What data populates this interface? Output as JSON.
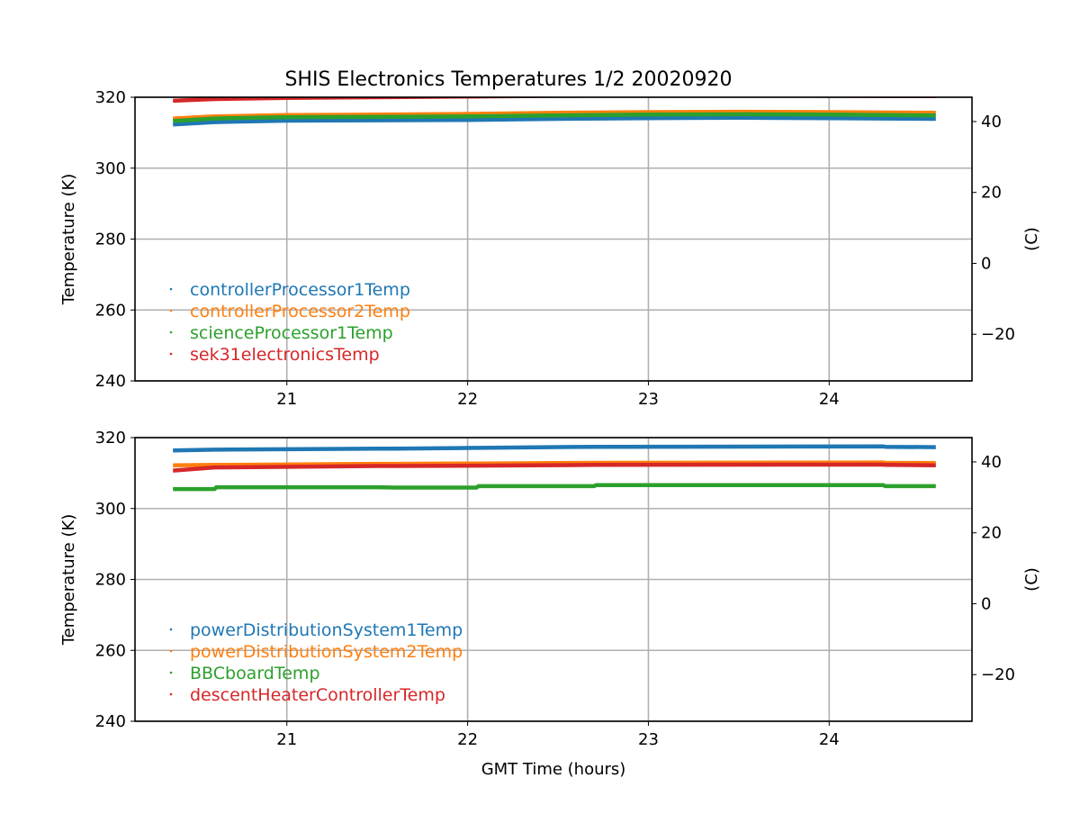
{
  "chart_data": [
    {
      "type": "line",
      "title": "SHIS Electronics Temperatures 1/2 20020920",
      "xlabel": "",
      "ylabel": "Temperature (K)",
      "y2label": "(C)",
      "xlim": [
        20.16,
        24.79
      ],
      "ylim": [
        240,
        320
      ],
      "xticks": [
        "21",
        "22",
        "23",
        "24"
      ],
      "xtick_values": [
        21,
        22,
        23,
        24
      ],
      "yticks": [
        "240",
        "260",
        "280",
        "300",
        "320"
      ],
      "ytick_values": [
        240,
        260,
        280,
        300,
        320
      ],
      "y2ticks": [
        "−20",
        "0",
        "20",
        "40"
      ],
      "y2tick_values": [
        -20,
        0,
        20,
        40
      ],
      "grid": true,
      "legend_position": "lower-left",
      "x": [
        20.37,
        20.6,
        21,
        21.5,
        22,
        22.5,
        23,
        23.5,
        24,
        24.59
      ],
      "series": [
        {
          "name": "controllerProcessor1Temp",
          "color": "#1f77b4",
          "values": [
            312.3,
            313.0,
            313.4,
            313.5,
            313.6,
            313.9,
            314.1,
            314.2,
            314.1,
            313.9
          ]
        },
        {
          "name": "controllerProcessor2Temp",
          "color": "#ff7f0e",
          "values": [
            314.0,
            314.6,
            315.0,
            315.1,
            315.3,
            315.6,
            315.8,
            315.9,
            315.8,
            315.6
          ]
        },
        {
          "name": "scienceProcessor1Temp",
          "color": "#2ca02c",
          "values": [
            313.3,
            314.0,
            314.4,
            314.5,
            314.6,
            314.9,
            315.1,
            315.2,
            315.1,
            314.9
          ]
        },
        {
          "name": "sek31electronicsTemp",
          "color": "#d62728",
          "values": [
            319.0,
            319.5,
            319.8,
            320.0,
            320.2,
            320.4,
            320.5,
            320.5,
            320.4,
            320.3
          ]
        }
      ]
    },
    {
      "type": "line",
      "title": "",
      "xlabel": "GMT Time (hours)",
      "ylabel": "Temperature (K)",
      "y2label": "(C)",
      "xlim": [
        20.16,
        24.79
      ],
      "ylim": [
        240,
        320
      ],
      "xticks": [
        "21",
        "22",
        "23",
        "24"
      ],
      "xtick_values": [
        21,
        22,
        23,
        24
      ],
      "yticks": [
        "240",
        "260",
        "280",
        "300",
        "320"
      ],
      "ytick_values": [
        240,
        260,
        280,
        300,
        320
      ],
      "y2ticks": [
        "−20",
        "0",
        "20",
        "40"
      ],
      "y2tick_values": [
        -20,
        0,
        20,
        40
      ],
      "grid": true,
      "legend_position": "lower-left",
      "x": [
        20.37,
        20.6,
        20.61,
        21.5,
        21.6,
        22.05,
        22.06,
        22.7,
        22.71,
        24.3,
        24.31,
        24.59
      ],
      "series": [
        {
          "name": "powerDistributionSystem1Temp",
          "color": "#1f77b4",
          "values": [
            316.4,
            316.6,
            316.6,
            316.9,
            316.9,
            317.1,
            317.1,
            317.4,
            317.4,
            317.5,
            317.4,
            317.3
          ]
        },
        {
          "name": "powerDistributionSystem2Temp",
          "color": "#ff7f0e",
          "values": [
            312.2,
            312.3,
            312.3,
            312.6,
            312.6,
            312.7,
            312.7,
            312.9,
            312.9,
            313.0,
            312.9,
            312.8
          ]
        },
        {
          "name": "BBCboardTemp",
          "color": "#2ca02c",
          "values": [
            305.5,
            305.5,
            306.0,
            306.0,
            305.9,
            305.9,
            306.3,
            306.3,
            306.6,
            306.6,
            306.3,
            306.3
          ]
        },
        {
          "name": "descentHeaterControllerTemp",
          "color": "#d62728",
          "values": [
            310.7,
            311.6,
            311.6,
            312.0,
            312.0,
            312.1,
            312.1,
            312.3,
            312.3,
            312.4,
            312.3,
            312.2
          ]
        }
      ]
    }
  ]
}
